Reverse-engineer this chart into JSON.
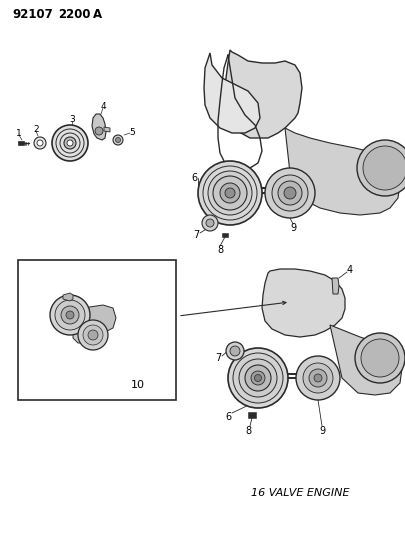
{
  "title_code": "92107 2200 A",
  "background_color": "#ffffff",
  "line_color": "#2a2a2a",
  "text_color": "#000000",
  "footer_text": "16 VALVE ENGINE",
  "fig_width": 4.06,
  "fig_height": 5.33,
  "dpi": 100
}
